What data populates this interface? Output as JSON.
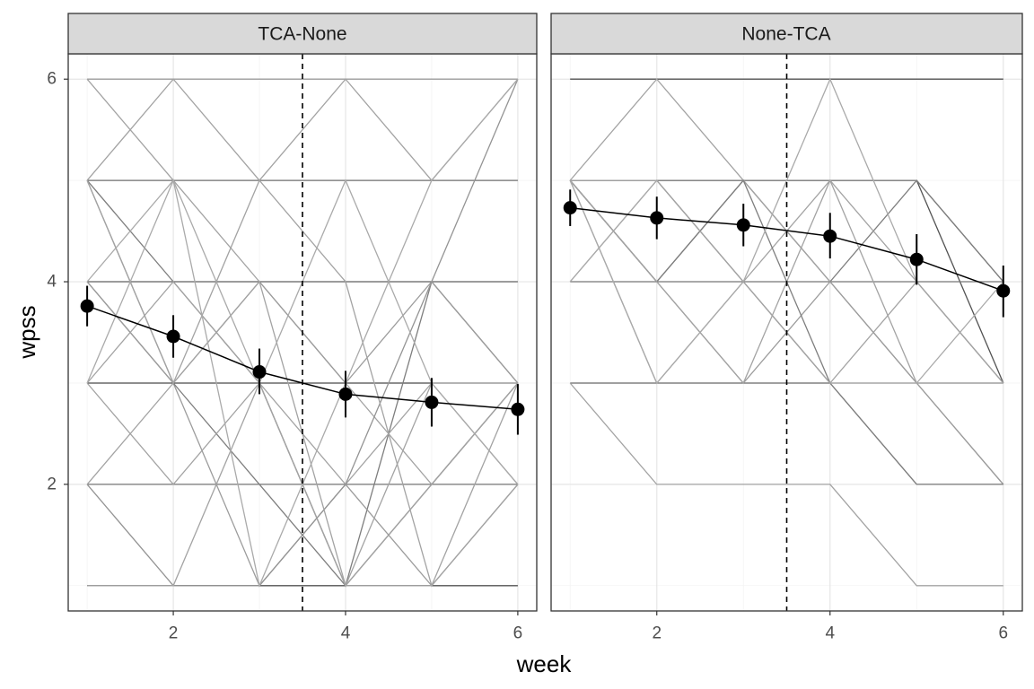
{
  "chart_data": {
    "type": "line",
    "xlabel": "week",
    "ylabel": "wpss",
    "xlim": [
      0.78,
      6.22
    ],
    "ylim": [
      0.75,
      6.25
    ],
    "x_ticks": [
      2,
      4,
      6
    ],
    "y_ticks": [
      2,
      4,
      6
    ],
    "grid": true,
    "theme": "black-and-white facets",
    "reference_line": {
      "x": 3.5,
      "style": "dashed"
    },
    "colors": {
      "strip_fill": "#d9d9d9",
      "panel_border": "#333333",
      "grid_major": "#e6e6e6",
      "grid_minor": "#f3f3f3",
      "mean_line": "#000000",
      "individual_darkest": "#3c3c3c",
      "individual_lightest": "#cfcfcf"
    },
    "facets": [
      {
        "label": "TCA-None",
        "mean_series": {
          "x": [
            1,
            2,
            3,
            4,
            5,
            6
          ],
          "y": [
            3.76,
            3.46,
            3.11,
            2.89,
            2.81,
            2.74
          ],
          "lower": [
            3.56,
            3.25,
            2.89,
            2.66,
            2.57,
            2.49
          ],
          "upper": [
            3.96,
            3.67,
            3.34,
            3.12,
            3.05,
            2.99
          ]
        },
        "individual_trajectories": [
          {
            "x": [
              1,
              2,
              3,
              4,
              5,
              6
            ],
            "y": [
              1,
              1,
              1,
              1,
              1,
              1
            ],
            "shade": 0.85
          },
          {
            "x": [
              1,
              2,
              3,
              4,
              5,
              6
            ],
            "y": [
              3,
              3,
              3,
              3,
              3,
              3
            ],
            "shade": 0.9
          },
          {
            "x": [
              1,
              2,
              3,
              4,
              5,
              6
            ],
            "y": [
              2,
              2,
              2,
              2,
              2,
              2
            ],
            "shade": 0.6
          },
          {
            "x": [
              1,
              2,
              3,
              4,
              5,
              6
            ],
            "y": [
              4,
              4,
              4,
              4,
              4,
              4
            ],
            "shade": 0.75
          },
          {
            "x": [
              1,
              2,
              3,
              4,
              5,
              6
            ],
            "y": [
              5,
              5,
              5,
              5,
              5,
              5
            ],
            "shade": 0.65
          },
          {
            "x": [
              1,
              2,
              3,
              4,
              5,
              6
            ],
            "y": [
              6,
              6,
              6,
              6,
              6,
              6
            ],
            "shade": 0.35
          },
          {
            "x": [
              1,
              2,
              3,
              4,
              5,
              6
            ],
            "y": [
              5,
              6,
              5,
              6,
              5,
              6
            ],
            "shade": 0.3
          },
          {
            "x": [
              1,
              2,
              3,
              4,
              5,
              6
            ],
            "y": [
              6,
              5,
              4,
              3,
              2,
              3
            ],
            "shade": 0.3
          },
          {
            "x": [
              1,
              2,
              3,
              4,
              5,
              6
            ],
            "y": [
              5,
              4,
              3,
              1,
              4,
              3
            ],
            "shade": 0.55
          },
          {
            "x": [
              1,
              2,
              3,
              4,
              5,
              6
            ],
            "y": [
              5,
              3,
              1,
              2,
              1,
              2
            ],
            "shade": 0.35
          },
          {
            "x": [
              1,
              2,
              3,
              4,
              5,
              6
            ],
            "y": [
              4,
              3,
              2,
              1,
              2,
              3
            ],
            "shade": 0.55
          },
          {
            "x": [
              1,
              2,
              3,
              4,
              5,
              6
            ],
            "y": [
              4,
              3,
              4,
              3,
              4,
              3
            ],
            "shade": 0.35
          },
          {
            "x": [
              1,
              2,
              3,
              4,
              5,
              6
            ],
            "y": [
              3,
              2,
              3,
              2,
              3,
              2
            ],
            "shade": 0.3
          },
          {
            "x": [
              1,
              2,
              3,
              4,
              5,
              6
            ],
            "y": [
              3,
              4,
              3,
              1,
              2,
              3
            ],
            "shade": 0.3
          },
          {
            "x": [
              1,
              2,
              3,
              4,
              5,
              6
            ],
            "y": [
              2,
              1,
              1,
              2,
              4,
              6
            ],
            "shade": 0.4
          },
          {
            "x": [
              1,
              2,
              3,
              4,
              5,
              6
            ],
            "y": [
              2,
              3,
              4,
              1,
              1,
              2
            ],
            "shade": 0.3
          },
          {
            "x": [
              1,
              2,
              3,
              4,
              5,
              6
            ],
            "y": [
              5,
              3,
              5,
              4,
              1,
              3
            ],
            "shade": 0.3
          },
          {
            "x": [
              1,
              2,
              3,
              4,
              5,
              6
            ],
            "y": [
              4,
              5,
              3,
              5,
              3,
              2
            ],
            "shade": 0.25
          },
          {
            "x": [
              1,
              2,
              3,
              4,
              5,
              6
            ],
            "y": [
              1,
              1,
              3,
              1,
              3,
              3
            ],
            "shade": 0.3
          },
          {
            "x": [
              1,
              2,
              3,
              4,
              5,
              6
            ],
            "y": [
              3,
              5,
              1,
              3,
              5,
              6
            ],
            "shade": 0.25
          }
        ]
      },
      {
        "label": "None-TCA",
        "mean_series": {
          "x": [
            1,
            2,
            3,
            4,
            5,
            6
          ],
          "y": [
            4.73,
            4.63,
            4.56,
            4.45,
            4.22,
            3.91
          ],
          "lower": [
            4.55,
            4.42,
            4.35,
            4.23,
            3.97,
            3.65
          ],
          "upper": [
            4.91,
            4.84,
            4.77,
            4.68,
            4.47,
            4.16
          ]
        },
        "individual_trajectories": [
          {
            "x": [
              1,
              2,
              3,
              4,
              5,
              6
            ],
            "y": [
              6,
              6,
              6,
              6,
              6,
              6
            ],
            "shade": 0.85
          },
          {
            "x": [
              1,
              2,
              3,
              4,
              5,
              6
            ],
            "y": [
              5,
              5,
              5,
              5,
              5,
              3
            ],
            "shade": 0.85
          },
          {
            "x": [
              1,
              2,
              3,
              4,
              5,
              6
            ],
            "y": [
              4,
              4,
              4,
              4,
              4,
              4
            ],
            "shade": 0.6
          },
          {
            "x": [
              1,
              2,
              3,
              4,
              5,
              6
            ],
            "y": [
              3,
              3,
              3,
              3,
              3,
              3
            ],
            "shade": 0.7
          },
          {
            "x": [
              1,
              2,
              3,
              4,
              5,
              6
            ],
            "y": [
              5,
              4,
              5,
              4,
              5,
              4
            ],
            "shade": 0.55
          },
          {
            "x": [
              1,
              2,
              3,
              4,
              5,
              6
            ],
            "y": [
              5,
              5,
              5,
              5,
              5,
              4
            ],
            "shade": 0.55
          },
          {
            "x": [
              1,
              2,
              3,
              4,
              5,
              6
            ],
            "y": [
              5,
              6,
              5,
              4,
              3,
              2
            ],
            "shade": 0.3
          },
          {
            "x": [
              1,
              2,
              3,
              4,
              5,
              6
            ],
            "y": [
              5,
              4,
              3,
              4,
              3,
              2
            ],
            "shade": 0.35
          },
          {
            "x": [
              1,
              2,
              3,
              4,
              5,
              6
            ],
            "y": [
              5,
              3,
              4,
              3,
              2,
              2
            ],
            "shade": 0.3
          },
          {
            "x": [
              1,
              2,
              3,
              4,
              5,
              6
            ],
            "y": [
              4,
              5,
              4,
              5,
              3,
              3
            ],
            "shade": 0.3
          },
          {
            "x": [
              1,
              2,
              3,
              4,
              5,
              6
            ],
            "y": [
              3,
              2,
              2,
              2,
              1,
              1
            ],
            "shade": 0.3
          },
          {
            "x": [
              1,
              2,
              3,
              4,
              5,
              6
            ],
            "y": [
              5,
              4,
              5,
              3,
              2,
              2
            ],
            "shade": 0.55
          },
          {
            "x": [
              1,
              2,
              3,
              4,
              5,
              6
            ],
            "y": [
              5,
              4,
              3,
              5,
              4,
              3
            ],
            "shade": 0.3
          },
          {
            "x": [
              1,
              2,
              3,
              4,
              5,
              6
            ],
            "y": [
              5,
              3,
              4,
              6,
              4,
              3
            ],
            "shade": 0.25
          },
          {
            "x": [
              1,
              2,
              3,
              4,
              5,
              6
            ],
            "y": [
              4,
              5,
              4,
              3,
              3,
              4
            ],
            "shade": 0.25
          },
          {
            "x": [
              1,
              2,
              3,
              4,
              5,
              6
            ],
            "y": [
              5,
              5,
              4,
              3,
              4,
              3
            ],
            "shade": 0.3
          }
        ]
      }
    ]
  }
}
